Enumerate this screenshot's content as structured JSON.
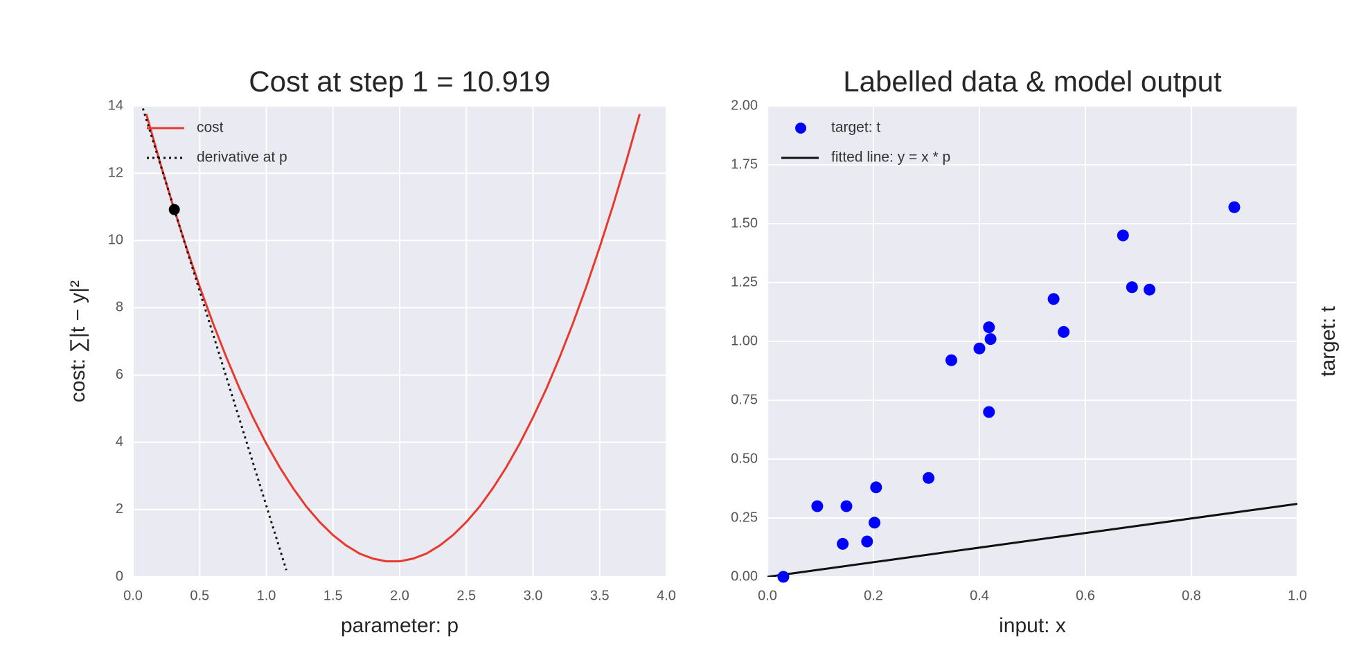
{
  "chart_data": [
    {
      "type": "line",
      "title": "Cost at step 1 = 10.919",
      "xlabel": "parameter: p",
      "ylabel": "cost: ∑|t − y|²",
      "xlim": [
        0,
        4
      ],
      "ylim": [
        0,
        14
      ],
      "xticks": [
        {
          "value": 0,
          "label": "0.0"
        },
        0.5,
        {
          "value": 1,
          "label": "1.0"
        },
        1.5,
        {
          "value": 2,
          "label": "2.0"
        },
        2.5,
        {
          "value": 3,
          "label": "3.0"
        },
        3.5,
        {
          "value": 4,
          "label": "4.0"
        }
      ],
      "yticks": [
        0,
        2,
        4,
        6,
        8,
        10,
        12,
        14
      ],
      "grid": true,
      "legend": "upper left",
      "series": [
        {
          "name": "cost",
          "color": "#e8392d",
          "linestyle": "solid",
          "x": [
            0.1,
            0.2,
            0.3,
            0.4,
            0.5,
            0.6,
            0.7,
            0.8,
            0.9,
            1.0,
            1.1,
            1.2,
            1.3,
            1.4,
            1.5,
            1.6,
            1.7,
            1.8,
            1.9,
            2.0,
            2.1,
            2.2,
            2.3,
            2.4,
            2.5,
            2.6,
            2.7,
            2.8,
            2.9,
            3.0,
            3.1,
            3.2,
            3.3,
            3.4,
            3.5,
            3.6,
            3.7,
            3.8
          ],
          "values": [
            13.76,
            12.36,
            11.04,
            9.8,
            8.63,
            7.54,
            6.53,
            5.59,
            4.74,
            3.96,
            3.26,
            2.64,
            2.09,
            1.63,
            1.24,
            0.93,
            0.69,
            0.54,
            0.46,
            0.46,
            0.54,
            0.69,
            0.93,
            1.24,
            1.63,
            2.09,
            2.64,
            3.26,
            3.96,
            4.74,
            5.59,
            6.53,
            7.54,
            8.63,
            9.8,
            11.04,
            12.36,
            13.76
          ]
        },
        {
          "name": "derivative at p",
          "color": "#111111",
          "linestyle": "dotted",
          "x": [
            0.05,
            1.15
          ],
          "values": [
            14.24,
            0.2
          ]
        }
      ],
      "point": {
        "x": 0.31,
        "y": 10.919,
        "color": "#000000"
      }
    },
    {
      "type": "scatter",
      "title": "Labelled data & model output",
      "xlabel": "input: x",
      "ylabel": "target: t",
      "ylabel_side": "right",
      "xlim": [
        0,
        1
      ],
      "ylim": [
        0,
        2
      ],
      "xticks": [
        {
          "value": 0,
          "label": "0.0"
        },
        0.2,
        0.4,
        0.6,
        0.8,
        {
          "value": 1,
          "label": "1.0"
        }
      ],
      "yticks": [
        {
          "value": 0,
          "label": "0.00"
        },
        0.25,
        {
          "value": 0.5,
          "label": "0.50"
        },
        0.75,
        {
          "value": 1,
          "label": "1.00"
        },
        1.25,
        {
          "value": 1.5,
          "label": "1.50"
        },
        1.75,
        {
          "value": 2,
          "label": "2.00"
        }
      ],
      "grid": true,
      "legend": "upper left",
      "series": [
        {
          "name": "target: t",
          "color": "#0000ff",
          "marker": "o",
          "x": [
            0.03,
            0.094,
            0.149,
            0.142,
            0.188,
            0.202,
            0.205,
            0.304,
            0.347,
            0.4,
            0.418,
            0.421,
            0.418,
            0.54,
            0.559,
            0.671,
            0.688,
            0.721,
            0.881
          ],
          "values": [
            0.0,
            0.3,
            0.3,
            0.14,
            0.15,
            0.23,
            0.38,
            0.42,
            0.92,
            0.97,
            1.06,
            1.01,
            0.7,
            1.18,
            1.04,
            1.45,
            1.23,
            1.22,
            1.57
          ]
        },
        {
          "name": "fitted line: y = x * p",
          "color": "#111111",
          "linestyle": "solid",
          "x": [
            0,
            1
          ],
          "values": [
            0,
            0.31
          ]
        }
      ]
    }
  ]
}
